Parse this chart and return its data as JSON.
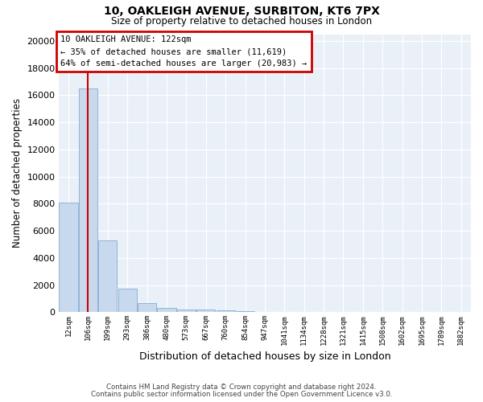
{
  "title_line1": "10, OAKLEIGH AVENUE, SURBITON, KT6 7PX",
  "title_line2": "Size of property relative to detached houses in London",
  "xlabel": "Distribution of detached houses by size in London",
  "ylabel": "Number of detached properties",
  "bin_labels": [
    "12sqm",
    "106sqm",
    "199sqm",
    "293sqm",
    "386sqm",
    "480sqm",
    "573sqm",
    "667sqm",
    "760sqm",
    "854sqm",
    "947sqm",
    "1041sqm",
    "1134sqm",
    "1228sqm",
    "1321sqm",
    "1415sqm",
    "1508sqm",
    "1602sqm",
    "1695sqm",
    "1789sqm",
    "1882sqm"
  ],
  "bar_heights": [
    8050,
    16500,
    5300,
    1750,
    650,
    300,
    200,
    175,
    140,
    100,
    0,
    0,
    0,
    0,
    0,
    0,
    0,
    0,
    0,
    0
  ],
  "bar_color": "#c8d9ee",
  "bar_edge_color": "#8fb4d9",
  "annotation_text": "10 OAKLEIGH AVENUE: 122sqm\n← 35% of detached houses are smaller (11,619)\n64% of semi-detached houses are larger (20,983) →",
  "annotation_box_color": "#ffffff",
  "annotation_box_edge_color": "#cc0000",
  "vline_color": "#cc0000",
  "property_bin_index": 1,
  "ylim_max": 20500,
  "yticks": [
    0,
    2000,
    4000,
    6000,
    8000,
    10000,
    12000,
    14000,
    16000,
    18000,
    20000
  ],
  "bg_color": "#eaf0f8",
  "grid_color": "#ffffff",
  "footer_line1": "Contains HM Land Registry data © Crown copyright and database right 2024.",
  "footer_line2": "Contains public sector information licensed under the Open Government Licence v3.0."
}
